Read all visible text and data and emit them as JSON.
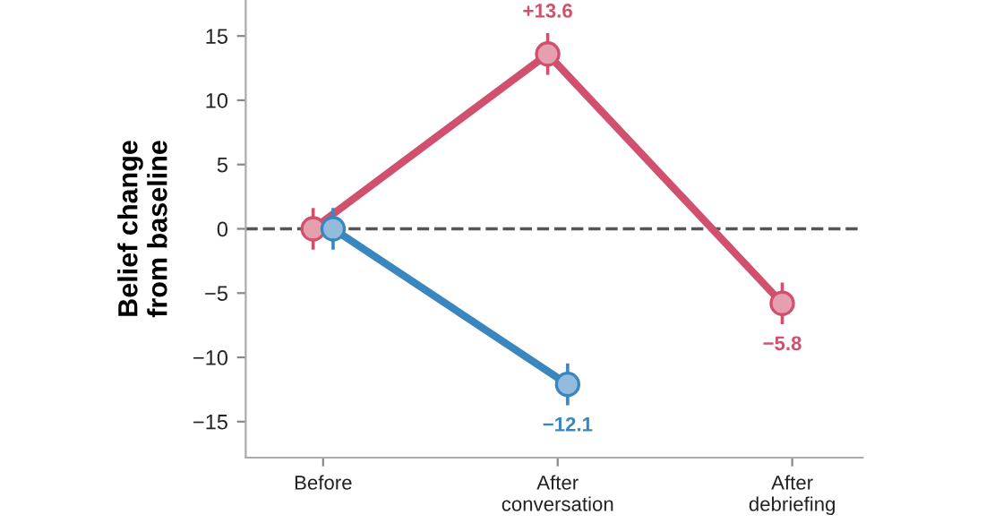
{
  "chart_data": {
    "type": "line",
    "ylabel": "Belief change\nfrom baseline",
    "categories": [
      "Before",
      "After\nconversation",
      "After\ndebriefing"
    ],
    "series": [
      {
        "color": "#d0506e",
        "values": [
          0,
          13.6,
          -5.8
        ],
        "errors": [
          1.5,
          1.5,
          1.5
        ],
        "value_labels": [
          null,
          "+13.6",
          "−5.8"
        ]
      },
      {
        "color": "#3a86bf",
        "values": [
          0,
          -12.1,
          null
        ],
        "errors": [
          1.5,
          1.5,
          null
        ],
        "value_labels": [
          null,
          "−12.1",
          null
        ]
      }
    ],
    "ylim": [
      -17.8,
      17.8
    ],
    "yticks": [
      -15,
      -10,
      -5,
      0,
      5,
      10,
      15
    ],
    "ref_lines": [
      {
        "axis": "y",
        "value": 0,
        "color": "#555555",
        "line_style": "dashed"
      }
    ],
    "marker": "circle",
    "line_style": "solid",
    "grid": false,
    "legend": false
  }
}
